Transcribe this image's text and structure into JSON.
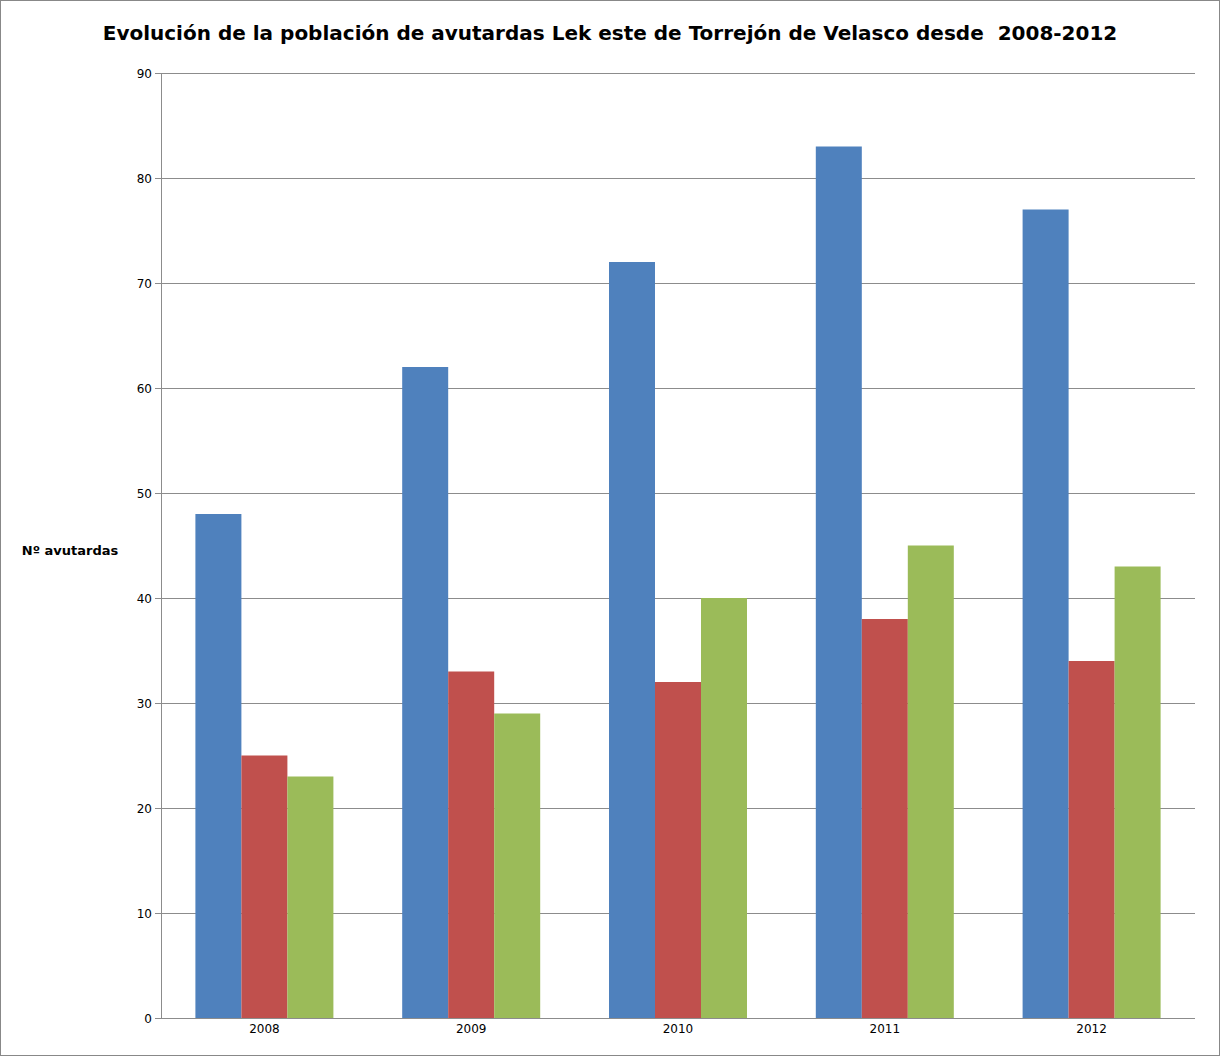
{
  "chart_data": {
    "type": "bar",
    "title": "Evolución de la población de avutardas Lek este de Torrejón de Velasco desde  2008-2012",
    "y_label": "Nº avutardas",
    "categories": [
      "2008",
      "2009",
      "2010",
      "2011",
      "2012"
    ],
    "series": [
      {
        "color": "#4f81bd",
        "values": [
          48,
          62,
          72,
          83,
          77
        ]
      },
      {
        "color": "#c0504d",
        "values": [
          25,
          33,
          32,
          38,
          34
        ]
      },
      {
        "color": "#9bbb59",
        "values": [
          23,
          29,
          40,
          45,
          43
        ]
      }
    ],
    "ylim": [
      0,
      90
    ],
    "yticks": [
      0,
      10,
      20,
      30,
      40,
      50,
      60,
      70,
      80,
      90
    ],
    "grid": true
  }
}
